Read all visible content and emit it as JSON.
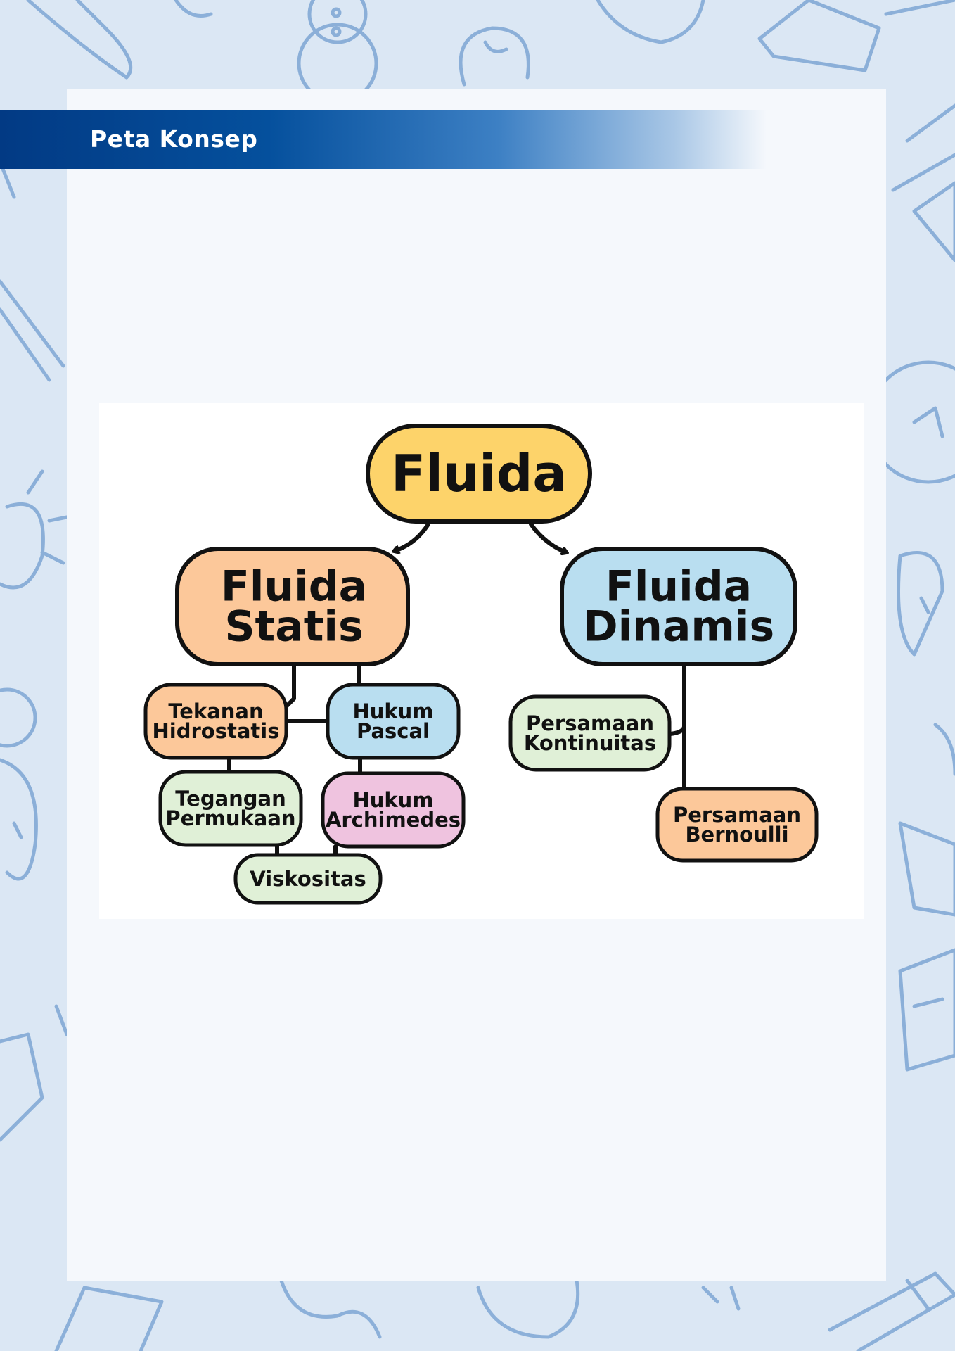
{
  "header": {
    "title": "Peta Konsep"
  },
  "diagram": {
    "colors": {
      "yellow": "#fdd36a",
      "orange": "#fcc89a",
      "blue": "#b9def0",
      "green": "#e0f0d7",
      "pink": "#efc3df",
      "stroke": "#111111"
    },
    "nodes": {
      "fluida": {
        "lines": [
          "Fluida"
        ],
        "color": "yellow"
      },
      "statis": {
        "lines": [
          "Fluida",
          "Statis"
        ],
        "color": "orange"
      },
      "dinamis": {
        "lines": [
          "Fluida",
          "Dinamis"
        ],
        "color": "blue"
      },
      "tekanan": {
        "lines": [
          "Tekanan",
          "Hidrostatis"
        ],
        "color": "orange"
      },
      "pascal": {
        "lines": [
          "Hukum",
          "Pascal"
        ],
        "color": "blue"
      },
      "tegangan": {
        "lines": [
          "Tegangan",
          "Permukaan"
        ],
        "color": "green"
      },
      "archimedes": {
        "lines": [
          "Hukum",
          "Archimedes"
        ],
        "color": "pink"
      },
      "viskositas": {
        "lines": [
          "Viskositas"
        ],
        "color": "green"
      },
      "kontinuitas": {
        "lines": [
          "Persamaan",
          "Kontinuitas"
        ],
        "color": "green"
      },
      "bernoulli": {
        "lines": [
          "Persamaan",
          "Bernoulli"
        ],
        "color": "orange"
      }
    }
  }
}
